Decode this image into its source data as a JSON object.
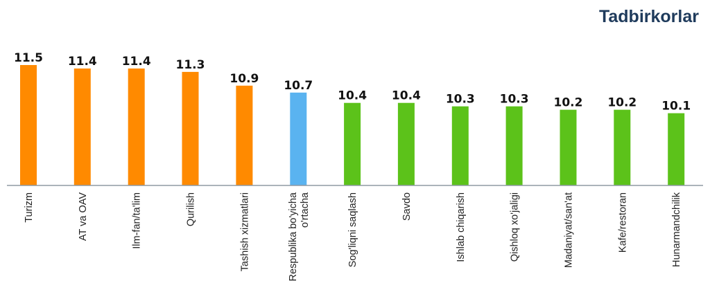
{
  "header": {
    "title": "Tadbirkorlar"
  },
  "colors": {
    "high": "#ff8a00",
    "average": "#5ab3f0",
    "low": "#5cc21a",
    "axis": "#8f9aa3",
    "title": "#1f3b5c"
  },
  "chart_data": {
    "type": "bar",
    "title": "Tadbirkorlar",
    "xlabel": "",
    "ylabel": "",
    "categories": [
      [
        "Turizm"
      ],
      [
        "AT va OAV"
      ],
      [
        "Ilm-fan/ta'lim"
      ],
      [
        "Qurilish"
      ],
      [
        "Tashish xizmatlari"
      ],
      [
        "Respublika bo'yicha",
        "o'rtacha"
      ],
      [
        "Sog'liqni saqlash"
      ],
      [
        "Savdo"
      ],
      [
        "Ishlab chiqarish"
      ],
      [
        "Qishloq xo'jaligi"
      ],
      [
        "Madaniyat/san'at"
      ],
      [
        "Kafe/restoran"
      ],
      [
        "Hunarmandchilik"
      ]
    ],
    "values": [
      11.5,
      11.4,
      11.4,
      11.3,
      10.9,
      10.7,
      10.4,
      10.4,
      10.3,
      10.3,
      10.2,
      10.2,
      10.1
    ],
    "value_labels": [
      "11.5",
      "11.4",
      "11.4",
      "11.3",
      "10.9",
      "10.7",
      "10.4",
      "10.4",
      "10.3",
      "10.3",
      "10.2",
      "10.2",
      "10.1"
    ],
    "bar_groups": [
      "high",
      "high",
      "high",
      "high",
      "high",
      "average",
      "low",
      "low",
      "low",
      "low",
      "low",
      "low",
      "low"
    ],
    "ylim": [
      8.0,
      11.5
    ],
    "grid": false,
    "legend": "none"
  }
}
